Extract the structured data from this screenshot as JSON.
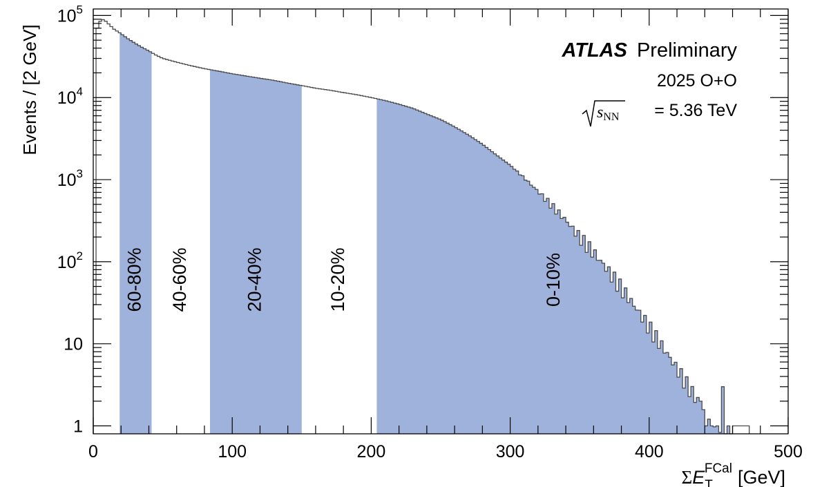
{
  "chart_data": {
    "type": "histogram",
    "title": "",
    "xlabel": {
      "prefix": "Σ",
      "var": "E",
      "sub": "T",
      "sup": "FCal",
      "unit": "[GeV]"
    },
    "ylabel": "Events / [2 GeV]",
    "xlim": [
      0,
      500
    ],
    "ylim": [
      0.8,
      120000
    ],
    "yscale": "log",
    "x_ticks": [
      0,
      100,
      200,
      300,
      400,
      500
    ],
    "x_tick_labels": [
      "0",
      "100",
      "200",
      "300",
      "400",
      "500"
    ],
    "y_ticks": [
      {
        "value": 1,
        "base": "1",
        "exp": ""
      },
      {
        "value": 10,
        "base": "10",
        "exp": ""
      },
      {
        "value": 100,
        "base": "10",
        "exp": "2"
      },
      {
        "value": 1000,
        "base": "10",
        "exp": "3"
      },
      {
        "value": 10000,
        "base": "10",
        "exp": "4"
      },
      {
        "value": 100000,
        "base": "10",
        "exp": "5"
      }
    ],
    "bin_width": 2,
    "curve_knots": [
      [
        0,
        0.9
      ],
      [
        1,
        30
      ],
      [
        2,
        20000
      ],
      [
        3,
        70000
      ],
      [
        5,
        85000
      ],
      [
        7,
        89000
      ],
      [
        9,
        85000
      ],
      [
        12,
        76000
      ],
      [
        15,
        68000
      ],
      [
        20,
        60000
      ],
      [
        25,
        52000
      ],
      [
        30,
        46000
      ],
      [
        35,
        41000
      ],
      [
        40,
        37000
      ],
      [
        45,
        33000
      ],
      [
        50,
        30000
      ],
      [
        60,
        27000
      ],
      [
        70,
        24500
      ],
      [
        80,
        22500
      ],
      [
        90,
        21000
      ],
      [
        100,
        19500
      ],
      [
        110,
        18300
      ],
      [
        120,
        17200
      ],
      [
        130,
        16200
      ],
      [
        140,
        15000
      ],
      [
        150,
        14000
      ],
      [
        160,
        13000
      ],
      [
        170,
        12300
      ],
      [
        180,
        11500
      ],
      [
        190,
        10800
      ],
      [
        200,
        10000
      ],
      [
        210,
        9200
      ],
      [
        220,
        8300
      ],
      [
        230,
        7400
      ],
      [
        240,
        6300
      ],
      [
        250,
        5400
      ],
      [
        260,
        4400
      ],
      [
        270,
        3500
      ],
      [
        280,
        2700
      ],
      [
        290,
        2000
      ],
      [
        300,
        1500
      ],
      [
        310,
        1050
      ],
      [
        320,
        720
      ],
      [
        330,
        480
      ],
      [
        340,
        320
      ],
      [
        350,
        200
      ],
      [
        360,
        130
      ],
      [
        370,
        80
      ],
      [
        380,
        48
      ],
      [
        390,
        28
      ],
      [
        400,
        16
      ],
      [
        410,
        9
      ],
      [
        420,
        5
      ],
      [
        430,
        2.7
      ],
      [
        440,
        1.5
      ],
      [
        450,
        1.1
      ],
      [
        460,
        0.8
      ]
    ],
    "tail_bins": [
      {
        "x": 437,
        "y": 2
      },
      {
        "x": 441,
        "y": 1
      },
      {
        "x": 445,
        "y": 1
      },
      {
        "x": 449,
        "y": 1
      },
      {
        "x": 453,
        "y": 3
      },
      {
        "x": 457,
        "y": 1
      },
      {
        "x": 461,
        "y": 1
      },
      {
        "x": 471,
        "y": 1
      }
    ],
    "centrality_bins": [
      {
        "label": "0-10%",
        "xmin": 204,
        "xmax": 460,
        "shaded": true
      },
      {
        "label": "10-20%",
        "xmin": 150,
        "xmax": 204,
        "shaded": false
      },
      {
        "label": "20-40%",
        "xmin": 84,
        "xmax": 150,
        "shaded": true
      },
      {
        "label": "40-60%",
        "xmin": 42,
        "xmax": 84,
        "shaded": false
      },
      {
        "label": "60-80%",
        "xmin": 19,
        "xmax": 42,
        "shaded": true
      }
    ],
    "colors": {
      "shade": "#9fb2dc",
      "line": "#4a4a4a",
      "frame": "#000000"
    },
    "grid": false,
    "legend": {
      "experiment": "ATLAS",
      "status": "Preliminary",
      "system": "2025 O+O",
      "energy_var": "s",
      "energy_sub": "NN",
      "energy_value": "= 5.36 TeV"
    }
  }
}
